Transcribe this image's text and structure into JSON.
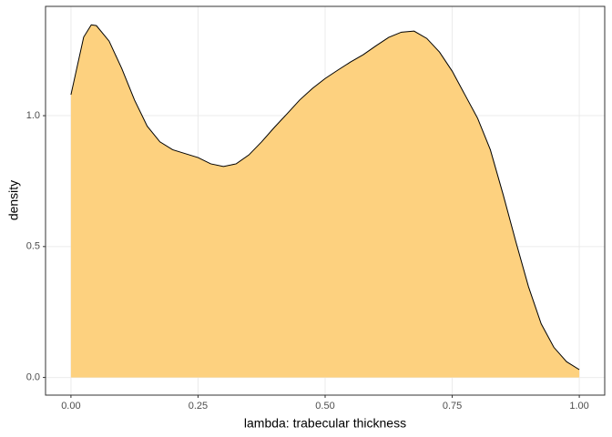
{
  "chart_data": {
    "type": "area",
    "x_label": "lambda: trabecular thickness",
    "y_label": "density",
    "x": [
      0,
      0.025,
      0.04,
      0.05,
      0.075,
      0.1,
      0.125,
      0.15,
      0.175,
      0.2,
      0.25,
      0.275,
      0.3,
      0.325,
      0.35,
      0.375,
      0.4,
      0.425,
      0.45,
      0.475,
      0.5,
      0.525,
      0.55,
      0.575,
      0.6,
      0.625,
      0.65,
      0.675,
      0.7,
      0.725,
      0.75,
      0.775,
      0.8,
      0.825,
      0.85,
      0.875,
      0.9,
      0.925,
      0.95,
      0.975,
      1.0
    ],
    "values": [
      1.08,
      1.3,
      1.347,
      1.344,
      1.285,
      1.18,
      1.06,
      0.96,
      0.9,
      0.87,
      0.84,
      0.816,
      0.806,
      0.816,
      0.85,
      0.9,
      0.955,
      1.007,
      1.06,
      1.104,
      1.142,
      1.174,
      1.205,
      1.233,
      1.267,
      1.299,
      1.319,
      1.323,
      1.295,
      1.243,
      1.17,
      1.08,
      0.99,
      0.87,
      0.7,
      0.52,
      0.347,
      0.205,
      0.115,
      0.06,
      0.03
    ],
    "color": "#fdd17f",
    "line_color": "#000000",
    "xlim": [
      -0.05,
      1.05
    ],
    "ylim": [
      -0.0675,
      1.4175
    ],
    "xticks": [
      {
        "value": 0,
        "label": "0.00"
      },
      {
        "value": 0.25,
        "label": "0.25"
      },
      {
        "value": 0.5,
        "label": "0.50"
      },
      {
        "value": 0.75,
        "label": "0.75"
      },
      {
        "value": 1,
        "label": "1.00"
      }
    ],
    "yticks": [
      {
        "value": 0,
        "label": "0.0"
      },
      {
        "value": 0.5,
        "label": "0.5"
      },
      {
        "value": 1,
        "label": "1.0"
      }
    ],
    "grid": true
  }
}
